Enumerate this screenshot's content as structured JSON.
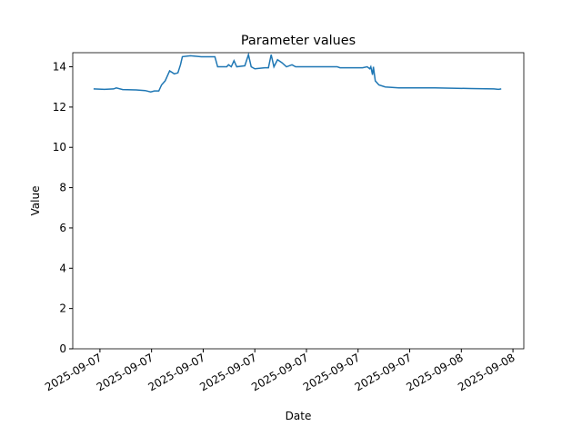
{
  "chart_data": {
    "type": "line",
    "title": "Parameter values",
    "x_label": "Date",
    "y_label": "Value",
    "xlim": [
      1.42,
      27.63
    ],
    "ylim": [
      0,
      14.7
    ],
    "xticks": [
      {
        "value": 3,
        "label": "2025-09-07"
      },
      {
        "value": 6,
        "label": "2025-09-07"
      },
      {
        "value": 9,
        "label": "2025-09-07"
      },
      {
        "value": 12,
        "label": "2025-09-07"
      },
      {
        "value": 15,
        "label": "2025-09-07"
      },
      {
        "value": 18,
        "label": "2025-09-07"
      },
      {
        "value": 21,
        "label": "2025-09-07"
      },
      {
        "value": 24,
        "label": "2025-09-08"
      },
      {
        "value": 27,
        "label": "2025-09-08"
      }
    ],
    "yticks": [
      0,
      2,
      4,
      6,
      8,
      10,
      12,
      14
    ],
    "color": "#1f77b4",
    "x": [
      2.63,
      3.26,
      3.79,
      3.95,
      4.32,
      5.11,
      5.63,
      5.95,
      6.16,
      6.42,
      6.58,
      6.79,
      7.05,
      7.32,
      7.53,
      7.68,
      7.79,
      8.26,
      8.89,
      9.32,
      9.68,
      9.84,
      10.37,
      10.47,
      10.63,
      10.79,
      10.95,
      11.42,
      11.63,
      11.79,
      12.0,
      12.58,
      12.79,
      12.95,
      13.11,
      13.32,
      13.58,
      13.84,
      14.16,
      14.37,
      16.79,
      16.95,
      18.26,
      18.53,
      18.68,
      18.74,
      18.84,
      18.89,
      19.0,
      19.21,
      19.58,
      20.37,
      22.47,
      24.58,
      25.89,
      26.16,
      26.32
    ],
    "values": [
      12.9,
      12.88,
      12.9,
      12.95,
      12.87,
      12.85,
      12.82,
      12.75,
      12.8,
      12.8,
      13.1,
      13.3,
      13.8,
      13.65,
      13.7,
      14.1,
      14.5,
      14.55,
      14.5,
      14.5,
      14.5,
      14.0,
      14.0,
      14.1,
      14.0,
      14.3,
      14.0,
      14.05,
      14.6,
      14.0,
      13.9,
      13.95,
      13.95,
      14.6,
      14.0,
      14.35,
      14.2,
      14.0,
      14.1,
      14.0,
      14.0,
      13.95,
      13.95,
      14.0,
      13.9,
      14.0,
      13.6,
      14.0,
      13.3,
      13.1,
      13.0,
      12.95,
      12.95,
      12.92,
      12.9,
      12.88,
      12.9
    ]
  }
}
